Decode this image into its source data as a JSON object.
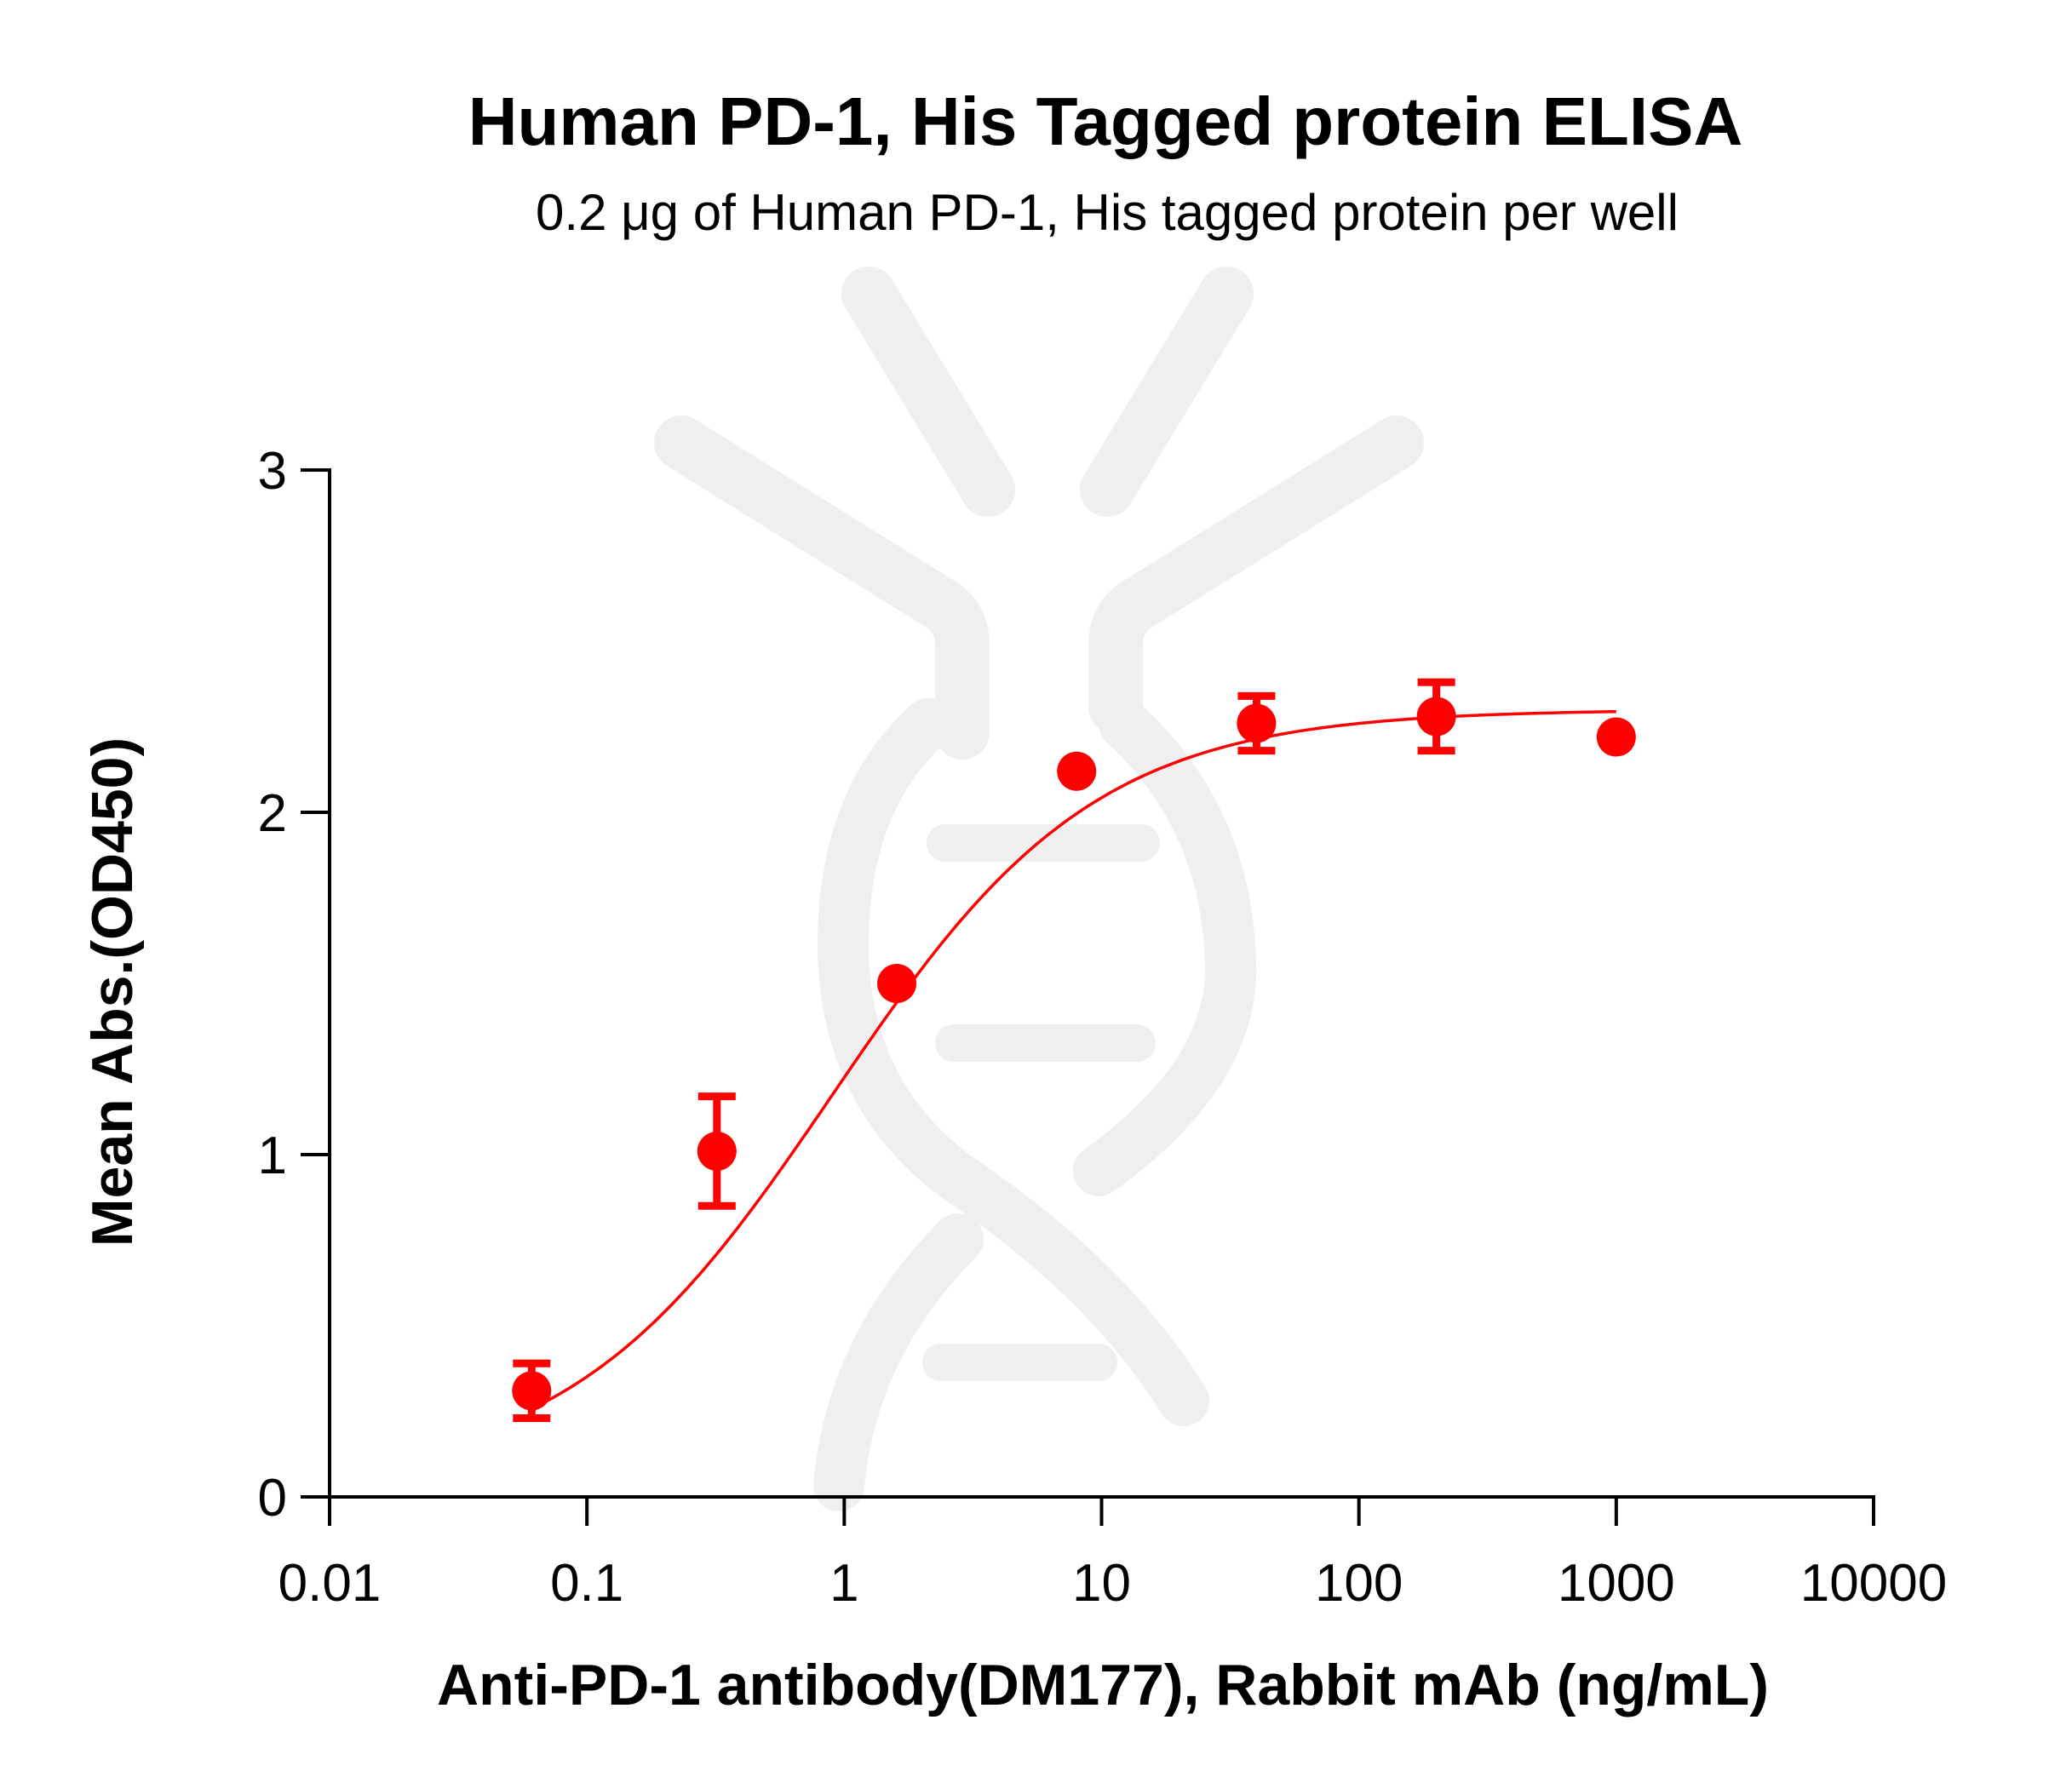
{
  "chart_data": {
    "type": "scatter",
    "title": "Human PD-1, His Tagged protein ELISA",
    "subtitle": "0.2 μg of Human PD-1, His tagged protein per well",
    "xlabel": "Anti-PD-1 antibody(DM177), Rabbit mAb (ng/mL)",
    "ylabel": "Mean Abs.(OD450)",
    "x_scale": "log",
    "xlim": [
      0.01,
      10000
    ],
    "ylim": [
      0,
      3
    ],
    "x_ticks": [
      0.01,
      0.1,
      1,
      10,
      100,
      1000,
      10000
    ],
    "x_tick_labels": [
      "0.01",
      "0.1",
      "1",
      "10",
      "100",
      "1000",
      "10000"
    ],
    "y_ticks": [
      0,
      1,
      2,
      3
    ],
    "y_tick_labels": [
      "0",
      "1",
      "2",
      "3"
    ],
    "grid": false,
    "colors": {
      "series": "#ff0000",
      "axis": "#000000",
      "watermark": "#efefef"
    },
    "series": [
      {
        "x": [
          0.061,
          0.32,
          1.6,
          8,
          40,
          200,
          1000
        ],
        "y": [
          0.31,
          1.01,
          1.5,
          2.12,
          2.26,
          2.28,
          2.22
        ],
        "error": [
          0.08,
          0.16,
          0,
          0,
          0.08,
          0.1,
          0
        ]
      }
    ],
    "fit_curve": {
      "model": "4PL",
      "bottom": 0.05,
      "top": 2.3,
      "ec50": 0.9,
      "hill": 0.85,
      "x_range": [
        0.061,
        1000
      ]
    }
  }
}
